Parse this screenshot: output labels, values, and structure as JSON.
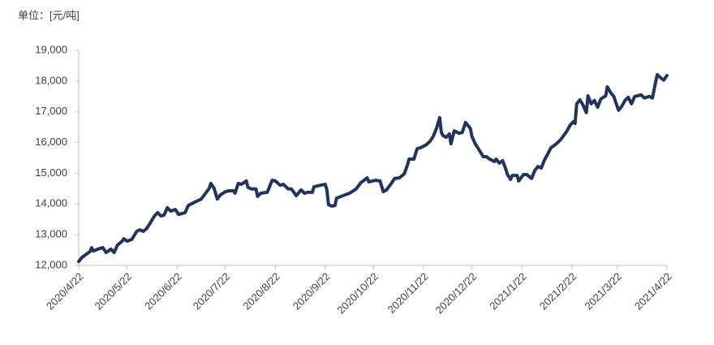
{
  "chart_data": {
    "type": "line",
    "y_label": "单位：[元/吨]",
    "color": "#1f3560",
    "x": [
      "2020/4/22",
      "2020/4/24",
      "2020/4/26",
      "2020/4/29",
      "2020/4/30",
      "2020/5/1",
      "2020/5/5",
      "2020/5/7",
      "2020/5/9",
      "2020/5/12",
      "2020/5/14",
      "2020/5/16",
      "2020/5/19",
      "2020/5/20",
      "2020/5/22",
      "2020/5/25",
      "2020/5/28",
      "2020/5/30",
      "2020/6/1",
      "2020/6/3",
      "2020/6/5",
      "2020/6/8",
      "2020/6/10",
      "2020/6/12",
      "2020/6/14",
      "2020/6/16",
      "2020/6/18",
      "2020/6/21",
      "2020/6/23",
      "2020/6/27",
      "2020/6/29",
      "2020/7/3",
      "2020/7/7",
      "2020/7/9",
      "2020/7/12",
      "2020/7/13",
      "2020/7/15",
      "2020/7/17",
      "2020/7/19",
      "2020/7/22",
      "2020/7/24",
      "2020/7/27",
      "2020/7/28",
      "2020/7/30",
      "2020/8/1",
      "2020/8/4",
      "2020/8/5",
      "2020/8/7",
      "2020/8/10",
      "2020/8/11",
      "2020/8/13",
      "2020/8/17",
      "2020/8/20",
      "2020/8/22",
      "2020/8/25",
      "2020/8/27",
      "2020/8/30",
      "2020/9/1",
      "2020/9/4",
      "2020/9/7",
      "2020/9/9",
      "2020/9/11",
      "2020/9/14",
      "2020/9/15",
      "2020/9/19",
      "2020/9/22",
      "2020/9/23",
      "2020/9/24",
      "2020/9/26",
      "2020/9/28",
      "2020/9/29",
      "2020/10/3",
      "2020/10/7",
      "2020/10/11",
      "2020/10/14",
      "2020/10/18",
      "2020/10/19",
      "2020/10/23",
      "2020/10/26",
      "2020/10/28",
      "2020/10/30",
      "2020/11/2",
      "2020/11/4",
      "2020/11/7",
      "2020/11/10",
      "2020/11/12",
      "2020/11/13",
      "2020/11/16",
      "2020/11/18",
      "2020/11/20",
      "2020/11/22",
      "2020/11/24",
      "2020/11/26",
      "2020/11/28",
      "2020/11/30",
      "2020/12/2",
      "2020/12/3",
      "2020/12/4",
      "2020/12/6",
      "2020/12/8",
      "2020/12/9",
      "2020/12/11",
      "2020/12/14",
      "2020/12/16",
      "2020/12/18",
      "2020/12/21",
      "2020/12/22",
      "2020/12/24",
      "2020/12/26",
      "2020/12/29",
      "2020/12/31",
      "2021/1/2",
      "2021/1/5",
      "2021/1/6",
      "2021/1/8",
      "2021/1/10",
      "2021/1/12",
      "2021/1/13",
      "2021/1/15",
      "2021/1/16",
      "2021/1/19",
      "2021/1/20",
      "2021/1/23",
      "2021/1/25",
      "2021/1/28",
      "2021/1/30",
      "2021/2/1",
      "2021/2/3",
      "2021/2/5",
      "2021/2/7",
      "2021/2/9",
      "2021/2/12",
      "2021/2/15",
      "2021/2/17",
      "2021/2/19",
      "2021/2/21",
      "2021/2/23",
      "2021/2/24",
      "2021/2/25",
      "2021/2/27",
      "2021/3/1",
      "2021/3/3",
      "2021/3/4",
      "2021/3/6",
      "2021/3/8",
      "2021/3/10",
      "2021/3/12",
      "2021/3/15",
      "2021/3/16",
      "2021/3/18",
      "2021/3/20",
      "2021/3/23",
      "2021/3/25",
      "2021/3/27",
      "2021/3/29",
      "2021/3/31",
      "2021/4/2",
      "2021/4/6",
      "2021/4/8",
      "2021/4/11",
      "2021/4/13",
      "2021/4/15",
      "2021/4/16",
      "2021/4/18",
      "2021/4/20",
      "2021/4/22"
    ],
    "values": [
      12130,
      12260,
      12340,
      12450,
      12580,
      12470,
      12550,
      12580,
      12420,
      12530,
      12420,
      12660,
      12790,
      12870,
      12790,
      12850,
      13110,
      13160,
      13110,
      13190,
      13350,
      13610,
      13720,
      13610,
      13640,
      13880,
      13770,
      13820,
      13660,
      13720,
      13950,
      14060,
      14160,
      14300,
      14510,
      14670,
      14510,
      14160,
      14300,
      14400,
      14430,
      14430,
      14350,
      14670,
      14640,
      14750,
      14540,
      14490,
      14490,
      14250,
      14350,
      14380,
      14770,
      14750,
      14610,
      14640,
      14490,
      14490,
      14270,
      14460,
      14350,
      14380,
      14380,
      14560,
      14610,
      14640,
      14460,
      13980,
      13930,
      13950,
      14190,
      14270,
      14350,
      14480,
      14690,
      14850,
      14720,
      14770,
      14750,
      14400,
      14460,
      14670,
      14830,
      14850,
      14980,
      15270,
      15460,
      15460,
      15800,
      15830,
      15880,
      15940,
      16040,
      16200,
      16460,
      16810,
      16330,
      16230,
      16170,
      16280,
      15960,
      16380,
      16300,
      16330,
      16650,
      16460,
      16200,
      15960,
      15800,
      15540,
      15540,
      15460,
      15380,
      15460,
      15330,
      15410,
      15140,
      14960,
      14800,
      14930,
      14930,
      14750,
      14960,
      14960,
      14830,
      15090,
      15220,
      15170,
      15430,
      15620,
      15830,
      15940,
      16090,
      16230,
      16380,
      16570,
      16680,
      16620,
      17260,
      17390,
      17210,
      16970,
      17520,
      17260,
      17370,
      17150,
      17420,
      17520,
      17810,
      17630,
      17500,
      17050,
      17180,
      17370,
      17470,
      17260,
      17500,
      17550,
      17450,
      17500,
      17450,
      17970,
      18210,
      18110,
      18030,
      18180
    ],
    "xlim": [
      "2020/4/22",
      "2021/4/22"
    ],
    "xticks": [
      "2020/4/22",
      "2020/5/22",
      "2020/6/22",
      "2020/7/22",
      "2020/8/22",
      "2020/9/22",
      "2020/10/22",
      "2020/11/22",
      "2020/12/22",
      "2021/1/22",
      "2021/2/22",
      "2021/3/22",
      "2021/4/22"
    ],
    "ylim": [
      12000,
      19000
    ],
    "yticks": [
      {
        "value": 12000,
        "label": "12,000"
      },
      {
        "value": 13000,
        "label": "13,000"
      },
      {
        "value": 14000,
        "label": "14,000"
      },
      {
        "value": 15000,
        "label": "15,000"
      },
      {
        "value": 16000,
        "label": "16,000"
      },
      {
        "value": 17000,
        "label": "17,000"
      },
      {
        "value": 18000,
        "label": "18,000"
      },
      {
        "value": 19000,
        "label": "19,000"
      }
    ],
    "grid": false
  }
}
